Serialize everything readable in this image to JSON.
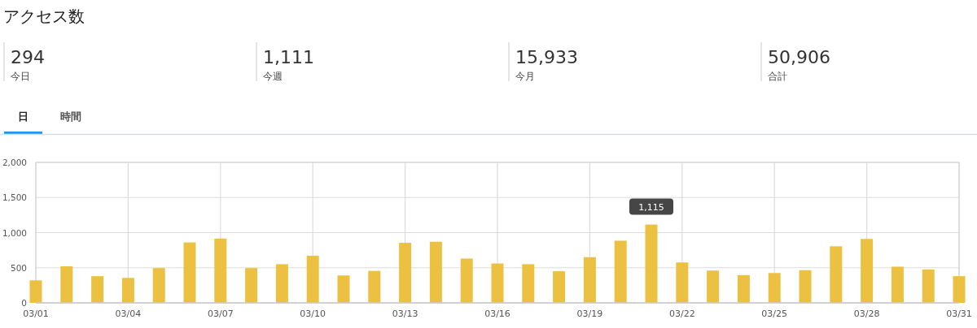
{
  "chart_data": [
    {
      "type": "other",
      "title": "アクセス数",
      "annotations": [
        "294",
        "今日",
        "1,111",
        "今週",
        "15,933",
        "今月",
        "50,906",
        "合計",
        "日",
        "時間"
      ]
    },
    {
      "type": "bar",
      "categories": [
        "03/01",
        null,
        null,
        "03/04",
        null,
        null,
        "03/07",
        null,
        null,
        "03/10",
        null,
        null,
        "03/13",
        null,
        null,
        "03/16",
        null,
        null,
        "03/19",
        null,
        null,
        "03/22",
        null,
        null,
        "03/25",
        null,
        null,
        "03/28",
        null,
        null,
        "03/31"
      ],
      "values": [
        320,
        520,
        380,
        355,
        495,
        860,
        915,
        495,
        550,
        670,
        390,
        455,
        855,
        870,
        630,
        560,
        550,
        450,
        650,
        885,
        1115,
        575,
        460,
        395,
        425,
        465,
        805,
        910,
        515,
        475,
        380
      ],
      "color": "#ecc142",
      "ylim": [
        0,
        2000
      ],
      "yticks": [
        {
          "value": 0,
          "label": "0"
        },
        {
          "value": 500,
          "label": "500"
        },
        {
          "value": 1000,
          "label": "1,000"
        },
        {
          "value": 1500,
          "label": "1,500"
        },
        {
          "value": 2000,
          "label": "2,000"
        }
      ],
      "grid": true,
      "annotations": [
        "1,115"
      ]
    }
  ]
}
